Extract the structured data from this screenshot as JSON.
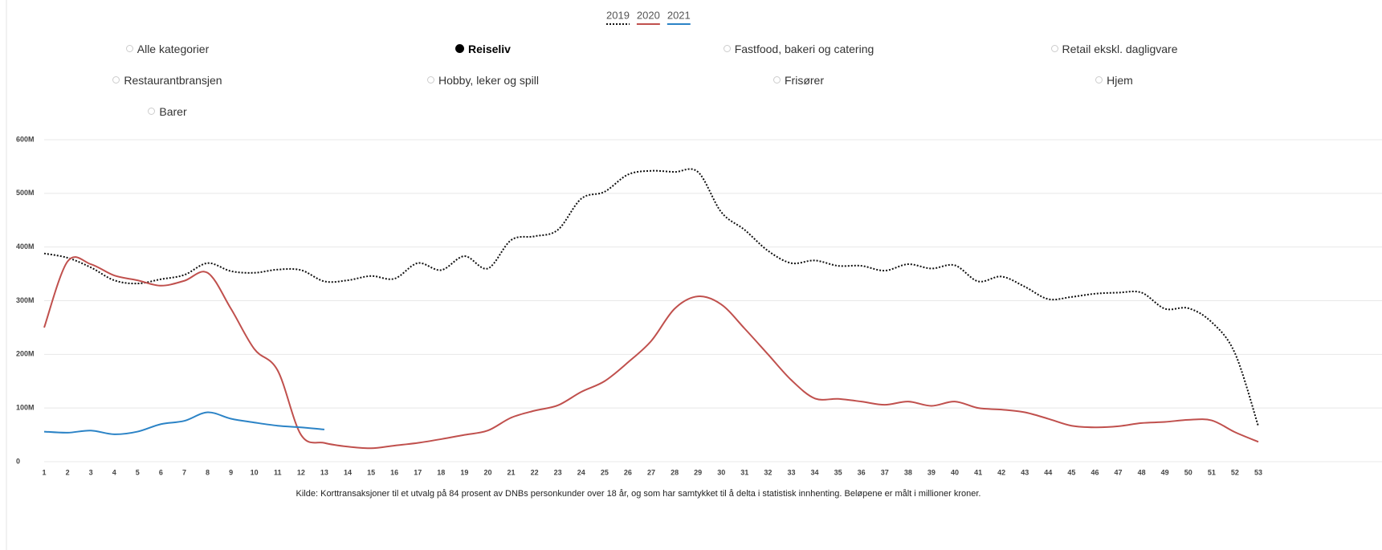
{
  "chart_data": {
    "type": "line",
    "x": [
      1,
      2,
      3,
      4,
      5,
      6,
      7,
      8,
      9,
      10,
      11,
      12,
      13,
      14,
      15,
      16,
      17,
      18,
      19,
      20,
      21,
      22,
      23,
      24,
      25,
      26,
      27,
      28,
      29,
      30,
      31,
      32,
      33,
      34,
      35,
      36,
      37,
      38,
      39,
      40,
      41,
      42,
      43,
      44,
      45,
      46,
      47,
      48,
      49,
      50,
      51,
      52,
      53
    ],
    "series": [
      {
        "name": "2019",
        "color": "#111111",
        "style": "dotted",
        "values": [
          388,
          380,
          362,
          338,
          332,
          340,
          348,
          370,
          355,
          352,
          358,
          357,
          336,
          338,
          346,
          341,
          370,
          357,
          383,
          360,
          413,
          420,
          432,
          490,
          503,
          535,
          542,
          540,
          540,
          465,
          432,
          393,
          370,
          375,
          365,
          365,
          356,
          368,
          360,
          366,
          336,
          345,
          326,
          303,
          307,
          313,
          315,
          315,
          285,
          286,
          260,
          202,
          66
        ]
      },
      {
        "name": "2020",
        "color": "#c0504d",
        "style": "solid",
        "values": [
          250,
          373,
          368,
          347,
          338,
          328,
          337,
          352,
          285,
          210,
          170,
          50,
          35,
          28,
          25,
          30,
          35,
          42,
          50,
          58,
          82,
          95,
          105,
          130,
          150,
          185,
          225,
          285,
          308,
          293,
          248,
          200,
          152,
          118,
          117,
          112,
          106,
          112,
          104,
          112,
          100,
          97,
          92,
          80,
          67,
          64,
          66,
          72,
          74,
          78,
          77,
          55,
          37
        ]
      },
      {
        "name": "2021",
        "color": "#2b83c6",
        "style": "solid",
        "values": [
          56,
          54,
          58,
          51,
          56,
          70,
          76,
          92,
          80,
          73,
          67,
          64,
          60,
          null,
          null,
          null,
          null,
          null,
          null,
          null,
          null,
          null,
          null,
          null,
          null,
          null,
          null,
          null,
          null,
          null,
          null,
          null,
          null,
          null,
          null,
          null,
          null,
          null,
          null,
          null,
          null,
          null,
          null,
          null,
          null,
          null,
          null,
          null,
          null,
          null,
          null,
          null,
          null
        ]
      }
    ],
    "xlim": [
      1,
      53
    ],
    "xticks": [
      1,
      2,
      3,
      4,
      5,
      6,
      7,
      8,
      9,
      10,
      11,
      12,
      13,
      14,
      15,
      16,
      17,
      18,
      19,
      20,
      21,
      22,
      23,
      24,
      25,
      26,
      27,
      28,
      29,
      30,
      31,
      32,
      33,
      34,
      35,
      36,
      37,
      38,
      39,
      40,
      41,
      42,
      43,
      44,
      45,
      46,
      47,
      48,
      49,
      50,
      51,
      52,
      53
    ],
    "ylim": [
      0,
      600
    ],
    "yticks": [
      0,
      {
        "value": 100,
        "label": "100M"
      },
      {
        "value": 200,
        "label": "200M"
      },
      {
        "value": 300,
        "label": "300M"
      },
      {
        "value": 400,
        "label": "400M"
      },
      {
        "value": 500,
        "label": "500M"
      },
      {
        "value": 600,
        "label": "600M"
      }
    ],
    "grid": true,
    "legend": "top",
    "caption": "Kilde: Korttransaksjoner til et utvalg på 84 prosent av DNBs personkunder over 18 år, og som har samtykket til å delta i statistisk innhenting. Beløpene er målt i millioner kroner."
  },
  "filters": {
    "options": [
      {
        "label": "Alle kategorier",
        "selected": false
      },
      {
        "label": "Reiseliv",
        "selected": true
      },
      {
        "label": "Fastfood, bakeri og catering",
        "selected": false
      },
      {
        "label": "Retail ekskl. dagligvare",
        "selected": false
      },
      {
        "label": "Restaurantbransjen",
        "selected": false
      },
      {
        "label": "Hobby, leker og spill",
        "selected": false
      },
      {
        "label": "Frisører",
        "selected": false
      },
      {
        "label": "Hjem",
        "selected": false
      },
      {
        "label": "Barer",
        "selected": false
      }
    ]
  }
}
